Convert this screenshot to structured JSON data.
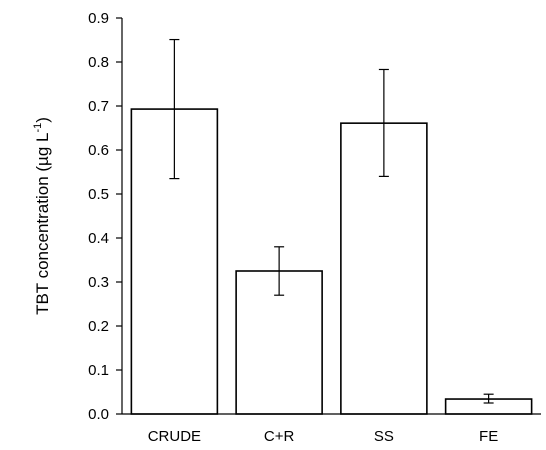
{
  "chart_data": {
    "type": "bar",
    "title": "",
    "xlabel": "",
    "ylabel": "TBT concentration (µg L",
    "ylabel_superscript": "-1",
    "ylabel_suffix": ")",
    "categories": [
      "CRUDE",
      "C+R",
      "SS",
      "FE"
    ],
    "values": [
      0.693,
      0.325,
      0.661,
      0.034
    ],
    "error_low": [
      0.535,
      0.27,
      0.54,
      0.025
    ],
    "error_high": [
      0.851,
      0.38,
      0.783,
      0.045
    ],
    "ylim": [
      0,
      0.9
    ],
    "yticks": [
      "0.0",
      "0.1",
      "0.2",
      "0.3",
      "0.4",
      "0.5",
      "0.6",
      "0.7",
      "0.8",
      "0.9"
    ],
    "grid": false,
    "colors": {
      "bar_fill": "#ffffff",
      "bar_stroke": "#000000"
    }
  }
}
